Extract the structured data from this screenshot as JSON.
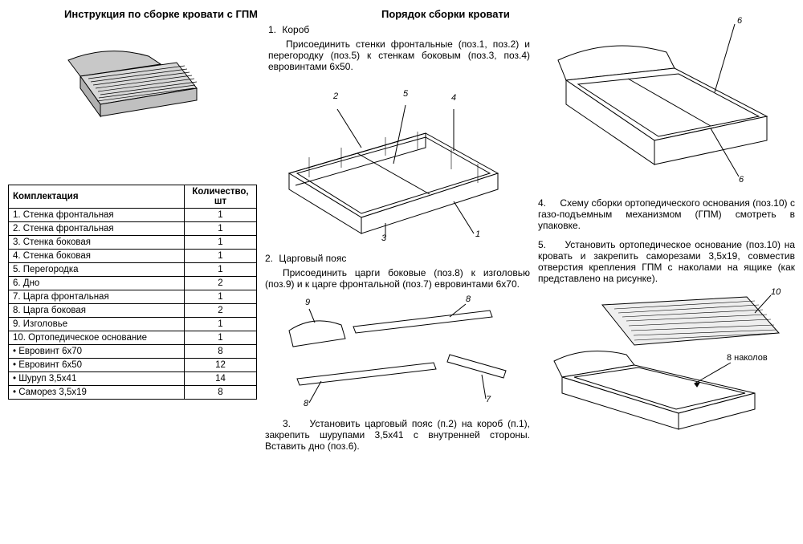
{
  "titles": {
    "left": "Инструкция по сборке кровати с ГПМ",
    "right": "Порядок сборки кровати"
  },
  "parts_table": {
    "header_name": "Комплектация",
    "header_qty": "Количество, шт",
    "rows": [
      {
        "name": "1.   Стенка фронтальная",
        "qty": "1"
      },
      {
        "name": "2.   Стенка фронтальная",
        "qty": "1"
      },
      {
        "name": "3.   Стенка боковая",
        "qty": "1"
      },
      {
        "name": "4.   Стенка боковая",
        "qty": "1"
      },
      {
        "name": "5.   Перегородка",
        "qty": "1"
      },
      {
        "name": "6.   Дно",
        "qty": "2"
      },
      {
        "name": "7.   Царга фронтальная",
        "qty": "1"
      },
      {
        "name": "8.   Царга боковая",
        "qty": "2"
      },
      {
        "name": "9.   Изголовье",
        "qty": "1"
      },
      {
        "name": "10. Ортопедическое основание",
        "qty": "1"
      },
      {
        "name": "•  Евровинт 6х70",
        "qty": "8"
      },
      {
        "name": "•  Евровинт 6х50",
        "qty": "12"
      },
      {
        "name": "•  Шуруп 3,5х41",
        "qty": "14"
      },
      {
        "name": "•  Саморез 3,5х19",
        "qty": "8"
      }
    ]
  },
  "steps": {
    "s1_num": "1.",
    "s1_title": "Короб",
    "s1_text": "Присоединить стенки фронтальные (поз.1, поз.2) и перегородку (поз.5) к стенкам боковым (поз.3, поз.4) евровинтами 6х50.",
    "s2_num": "2.",
    "s2_title": "Царговый пояс",
    "s2_text": "Присоединить царги боковые (поз.8) к изголовью (поз.9) и к царге фронтальной (поз.7) евровинтами 6х70.",
    "s3_num": "3.",
    "s3_text": "Установить царговый пояс (п.2) на короб (п.1), закрепить шурупами 3,5х41 с внутренней стороны. Вставить дно (поз.6).",
    "s4_num": "4.",
    "s4_text": "Схему сборки ортопедического основания (поз.10) с газо-подъемным механизмом (ГПМ) смотреть в упаковке.",
    "s5_num": "5.",
    "s5_text": "Установить ортопедическое основание (поз.10) на кровать и закрепить саморезами 3,5х19, совместив отверстия крепления ГПМ с наколами на ящике (как представлено на рисунке)."
  },
  "callouts": {
    "d1_2": "2",
    "d1_5": "5",
    "d1_4": "4",
    "d1_3": "3",
    "d1_1": "1",
    "d2_9": "9",
    "d2_8a": "8",
    "d2_8b": "8",
    "d2_7": "7",
    "r1_6a": "6",
    "r1_6b": "6",
    "r2_10": "10",
    "r2_nakol": "8 наколов"
  },
  "style": {
    "stroke": "#000000",
    "fill_light": "#f5f5f5",
    "fill_dark": "#dcdcdc",
    "bed_shade": "#bdbdbd",
    "text_color": "#000000",
    "font_size_body": 12,
    "font_size_title": 13,
    "font_size_table": 11.5,
    "font_size_callout": 11
  }
}
